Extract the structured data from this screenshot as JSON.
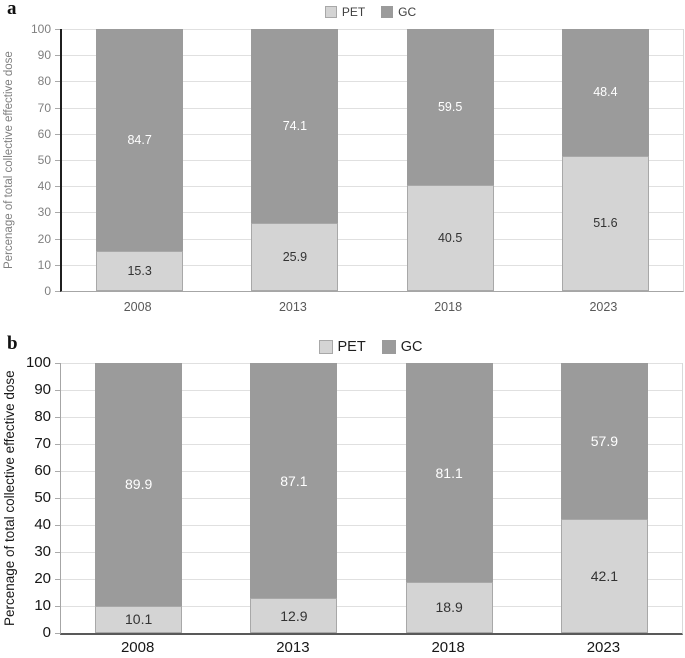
{
  "chart_data": [
    {
      "panel_label": "a",
      "type": "bar",
      "stacked": true,
      "categories": [
        "2008",
        "2013",
        "2018",
        "2023"
      ],
      "series": [
        {
          "name": "PET",
          "values": [
            15.3,
            25.9,
            40.5,
            51.6
          ],
          "fill": "#d4d4d4",
          "border": "#a8a8a8",
          "label_color": "#333333"
        },
        {
          "name": "GC",
          "values": [
            84.7,
            74.1,
            59.5,
            48.4
          ],
          "fill": "#9b9b9b",
          "border": "#9b9b9b",
          "label_color": "#ffffff"
        }
      ],
      "ylabel": "Percenage of total collective effective dose",
      "xlabel": "",
      "ylim": [
        0,
        100
      ],
      "ytick_step": 10,
      "grid": true,
      "data_labels": true,
      "legend_position": "top-center"
    },
    {
      "panel_label": "b",
      "type": "bar",
      "stacked": true,
      "categories": [
        "2008",
        "2013",
        "2018",
        "2023"
      ],
      "series": [
        {
          "name": "PET",
          "values": [
            10.1,
            12.9,
            18.9,
            42.1
          ],
          "fill": "#d4d4d4",
          "border": "#a8a8a8",
          "label_color": "#333333"
        },
        {
          "name": "GC",
          "values": [
            89.9,
            87.1,
            81.1,
            57.9
          ],
          "fill": "#9b9b9b",
          "border": "#9b9b9b",
          "label_color": "#ffffff"
        }
      ],
      "ylabel": "Percenage of total collective effective dose",
      "xlabel": "",
      "ylim": [
        0,
        100
      ],
      "ytick_step": 10,
      "grid": true,
      "data_labels": true,
      "legend_position": "top-center"
    }
  ]
}
